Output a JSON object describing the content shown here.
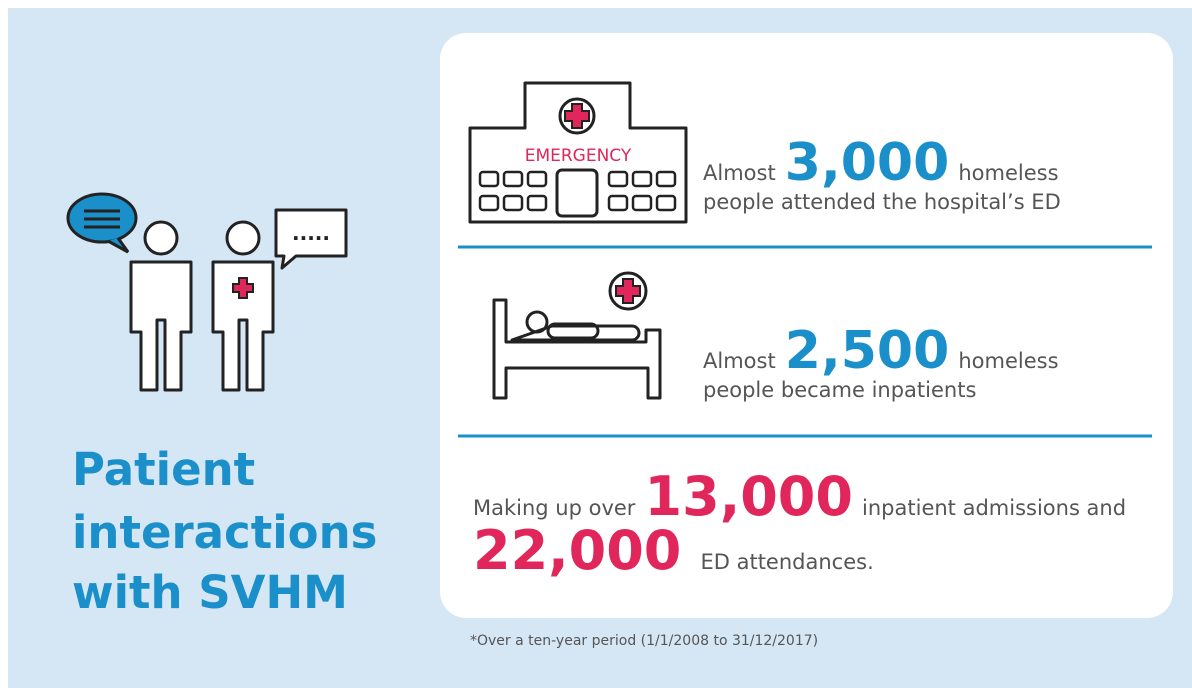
{
  "title": {
    "lines": [
      "Patient",
      "interactions",
      "with SVHM"
    ]
  },
  "hospital_sign": "EMERGENCY",
  "stats": [
    {
      "prefix": "Almost",
      "number": "3,000",
      "suffix": "homeless",
      "line2": "people attended the hospital’s ED"
    },
    {
      "prefix": "Almost",
      "number": "2,500",
      "suffix": "homeless",
      "line2": "people became inpatients"
    },
    {
      "prefix": "Making up over",
      "number": "13,000",
      "suffix": "inpatient admissions and",
      "number2": "22,000",
      "line2": "ED attendances."
    }
  ],
  "footnote": "*Over a ten-year period (1/1/2008 to 31/12/2017)"
}
